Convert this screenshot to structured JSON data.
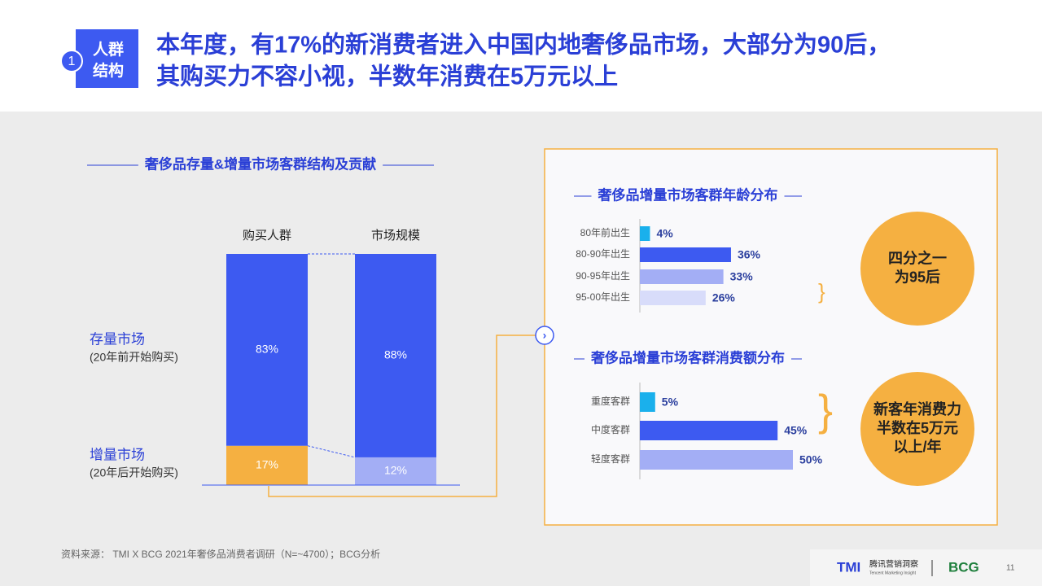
{
  "header": {
    "badge_number": "1",
    "badge_lines": [
      "人群",
      "结构"
    ],
    "title_lines": [
      "本年度，有17%的新消费者进入中国内地奢侈品市场，大部分为90后，",
      "其购买力不容小视，半数年消费在5万元以上"
    ]
  },
  "chart_data": [
    {
      "type": "stacked-bar",
      "title": "奢侈品存量&增量市场客群结构及贡献",
      "categories": [
        "购买人群",
        "市场规模"
      ],
      "ylim": [
        0,
        100
      ],
      "series": [
        {
          "name": "增量市场",
          "description": "(20年后开始购买)",
          "colors": [
            "#f5b041",
            "#a3aef5"
          ],
          "values": [
            17,
            12
          ],
          "value_labels": [
            "17%",
            "12%"
          ]
        },
        {
          "name": "存量市场",
          "description": "(20年前开始购买)",
          "colors": [
            "#3d5af1",
            "#3d5af1"
          ],
          "values": [
            83,
            88
          ],
          "value_labels": [
            "83%",
            "88%"
          ]
        }
      ]
    },
    {
      "type": "hbar",
      "title": "奢侈品增量市场客群年龄分布",
      "categories": [
        "80年前出生",
        "80-90年出生",
        "90-95年出生",
        "95-00年出生"
      ],
      "values": [
        4,
        36,
        33,
        26
      ],
      "value_labels": [
        "4%",
        "36%",
        "33%",
        "26%"
      ],
      "colors": [
        "#1ab0ec",
        "#3d5af1",
        "#a3aef5",
        "#d8dcfa"
      ],
      "xlim": [
        0,
        100
      ],
      "callout": [
        "四分之一",
        "为95后"
      ]
    },
    {
      "type": "hbar",
      "title": "奢侈品增量市场客群消费额分布",
      "categories": [
        "重度客群",
        "中度客群",
        "轻度客群"
      ],
      "values": [
        5,
        45,
        50
      ],
      "value_labels": [
        "5%",
        "45%",
        "50%"
      ],
      "colors": [
        "#1ab0ec",
        "#3d5af1",
        "#a3aef5"
      ],
      "xlim": [
        0,
        100
      ],
      "callout": [
        "新客年消费力",
        "半数在5万元",
        "以上/年"
      ]
    }
  ],
  "footer": {
    "source": "资料来源： TMI X BCG 2021年奢侈品消费者调研（N=~4700）；BCG分析",
    "logo_mark": "TMI",
    "logo_cn": "腾讯营销洞察",
    "logo_en": "Tencent Marketing Insight",
    "partner": "BCG",
    "page": "11"
  }
}
